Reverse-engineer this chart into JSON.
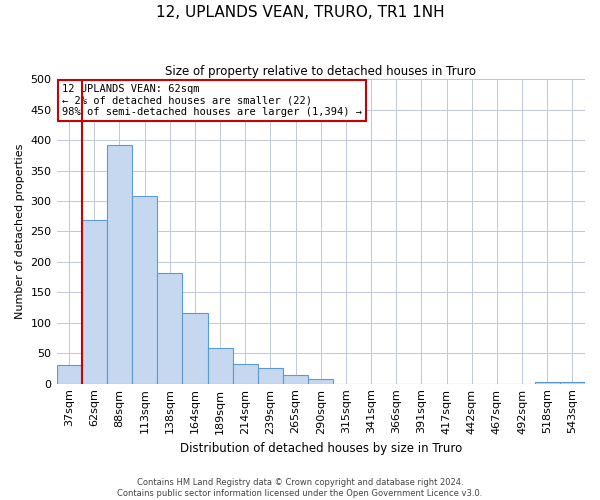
{
  "title": "12, UPLANDS VEAN, TRURO, TR1 1NH",
  "subtitle": "Size of property relative to detached houses in Truro",
  "xlabel": "Distribution of detached houses by size in Truro",
  "ylabel": "Number of detached properties",
  "bar_labels": [
    "37sqm",
    "62sqm",
    "88sqm",
    "113sqm",
    "138sqm",
    "164sqm",
    "189sqm",
    "214sqm",
    "239sqm",
    "265sqm",
    "290sqm",
    "315sqm",
    "341sqm",
    "366sqm",
    "391sqm",
    "417sqm",
    "442sqm",
    "467sqm",
    "492sqm",
    "518sqm",
    "543sqm"
  ],
  "bar_values": [
    30,
    268,
    392,
    308,
    181,
    116,
    59,
    32,
    26,
    15,
    8,
    0,
    0,
    0,
    0,
    0,
    0,
    0,
    0,
    3,
    2
  ],
  "bar_color": "#c5d8f0",
  "bar_edge_color": "#5b9bd5",
  "vline_color": "#cc0000",
  "annotation_line1": "12 UPLANDS VEAN: 62sqm",
  "annotation_line2": "← 2% of detached houses are smaller (22)",
  "annotation_line3": "98% of semi-detached houses are larger (1,394) →",
  "annotation_box_color": "#ffffff",
  "annotation_box_edge_color": "#cc0000",
  "ylim": [
    0,
    500
  ],
  "yticks": [
    0,
    50,
    100,
    150,
    200,
    250,
    300,
    350,
    400,
    450,
    500
  ],
  "footer1": "Contains HM Land Registry data © Crown copyright and database right 2024.",
  "footer2": "Contains public sector information licensed under the Open Government Licence v3.0.",
  "background_color": "#ffffff",
  "grid_color": "#c0c8d8"
}
